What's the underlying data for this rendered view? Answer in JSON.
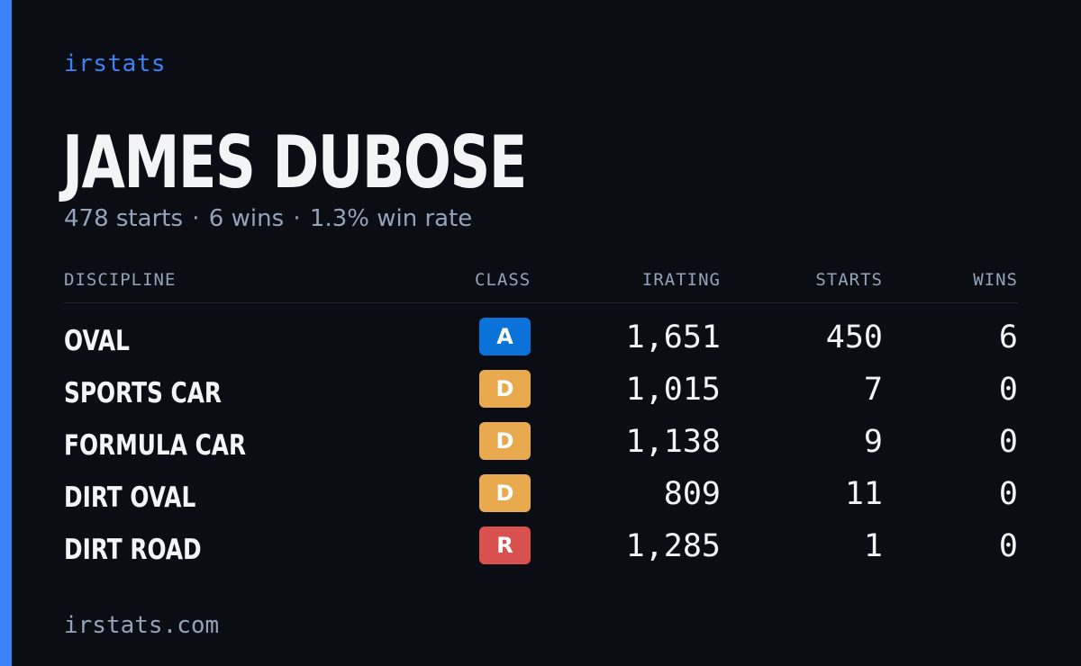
{
  "brand": "irstats",
  "driver": {
    "name": "JAMES DUBOSE",
    "starts_text": "478 starts",
    "wins_text": "6 wins",
    "win_rate_text": "1.3% win rate",
    "separator": "·"
  },
  "table": {
    "headers": {
      "discipline": "DISCIPLINE",
      "class": "CLASS",
      "irating": "IRATING",
      "starts": "STARTS",
      "wins": "WINS"
    },
    "rows": [
      {
        "discipline": "OVAL",
        "class": "A",
        "class_color": "#0a72d8",
        "irating": "1,651",
        "starts": "450",
        "wins": "6"
      },
      {
        "discipline": "SPORTS CAR",
        "class": "D",
        "class_color": "#e9a94f",
        "irating": "1,015",
        "starts": "7",
        "wins": "0"
      },
      {
        "discipline": "FORMULA CAR",
        "class": "D",
        "class_color": "#e9a94f",
        "irating": "1,138",
        "starts": "9",
        "wins": "0"
      },
      {
        "discipline": "DIRT OVAL",
        "class": "D",
        "class_color": "#e9a94f",
        "irating": "809",
        "starts": "11",
        "wins": "0"
      },
      {
        "discipline": "DIRT ROAD",
        "class": "R",
        "class_color": "#d9514e",
        "irating": "1,285",
        "starts": "1",
        "wins": "0"
      }
    ]
  },
  "footer": {
    "url": "irstats.com"
  },
  "colors": {
    "accent": "#3b82f6",
    "background": "#0a0d14"
  }
}
